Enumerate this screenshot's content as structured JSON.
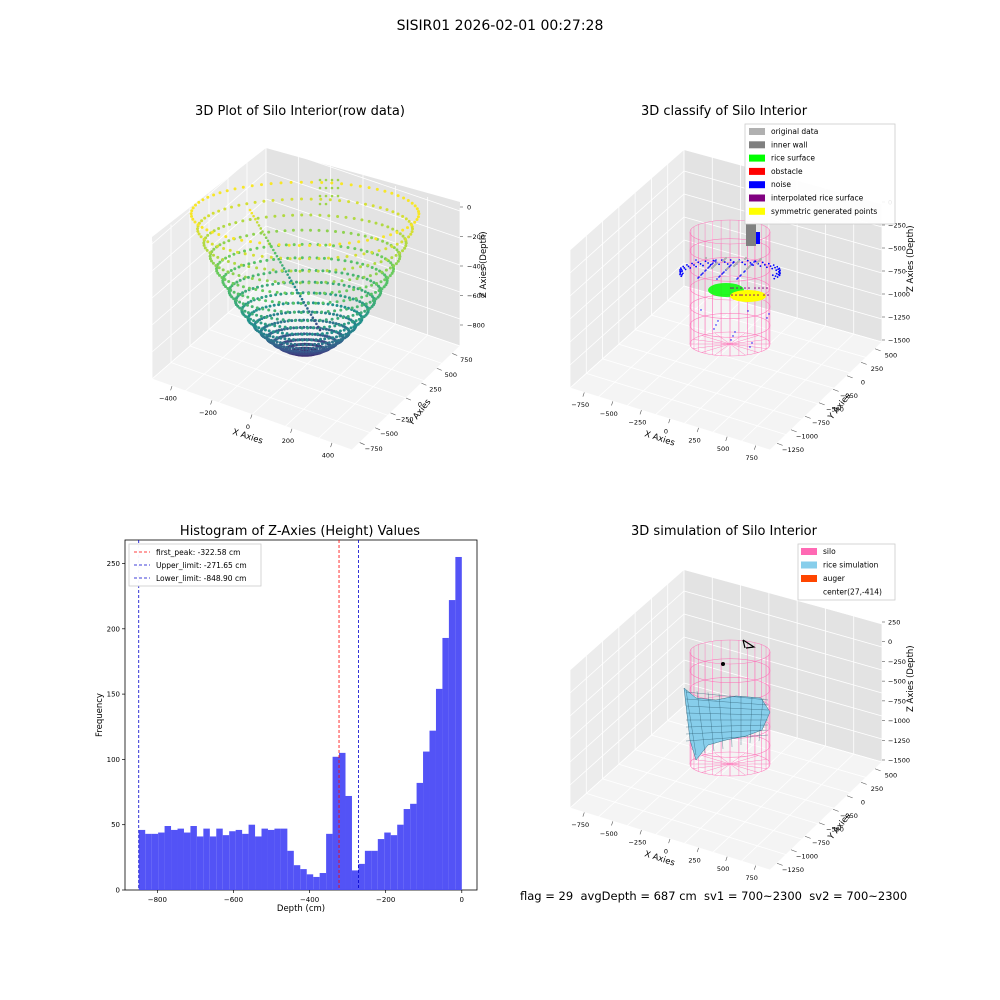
{
  "suptitle": "SISIR01 2026-02-01 00:27:28",
  "status_text": "flag = 29  avgDepth = 687 cm  sv1 = 700~2300  sv2 = 700~2300",
  "colors": {
    "hist_bar": "#4a4af5",
    "first_peak": "#ff0000",
    "limit": "#0000cc",
    "silo": "#ff69b4",
    "rice_simulation": "#87ceeb",
    "auger": "#ff4500",
    "original_data": "#b0b0b0",
    "inner_wall": "#808080",
    "rice_surface": "#00ff00",
    "obstacle": "#ff0000",
    "noise": "#0000ff",
    "interpolated_rice_surface": "#800080",
    "symmetric_generated_points": "#ffff00"
  },
  "chart_data": [
    {
      "type": "scatter",
      "subtype": "3d",
      "title": "3D Plot of Silo Interior(row data)",
      "xlabel": "X Axies",
      "ylabel": "Y Axies",
      "zlabel": "Z Axies (Depth)",
      "x_ticks": [
        "−400",
        "−200",
        "0",
        "200",
        "400"
      ],
      "y_ticks": [
        "−750",
        "−500",
        "−250",
        "0",
        "250",
        "500",
        "750"
      ],
      "z_ticks": [
        "0",
        "−200",
        "−400",
        "−600",
        "−800"
      ],
      "colormap": "viridis",
      "zlim": [
        -900,
        0
      ]
    },
    {
      "type": "scatter",
      "subtype": "3d",
      "title": "3D classify of Silo Interior",
      "xlabel": "X Axies",
      "ylabel": "Y Axies",
      "zlabel": "Z Axies (Depth)",
      "x_ticks": [
        "−750",
        "−500",
        "−250",
        "0",
        "250",
        "500",
        "750"
      ],
      "y_ticks": [
        "−1250",
        "−1000",
        "−750",
        "−500",
        "−250",
        "0",
        "250",
        "500"
      ],
      "z_ticks": [
        "0",
        "−250",
        "−500",
        "−750",
        "−1000",
        "−1250",
        "−1500"
      ],
      "legend": [
        "original data",
        "inner wall",
        "rice surface",
        "obstacle",
        "noise",
        "interpolated rice surface",
        "symmetric generated points"
      ],
      "legend_placement": "top-right"
    },
    {
      "type": "bar",
      "title": "Histogram of Z-Axies (Height) Values",
      "xlabel": "Depth (cm)",
      "ylabel": "Frequency",
      "x_ticks": [
        "−800",
        "−600",
        "−400",
        "−200",
        "0"
      ],
      "x_tick_values": [
        -800,
        -600,
        -400,
        -200,
        0
      ],
      "y_ticks": [
        0,
        50,
        100,
        150,
        200,
        250
      ],
      "xlim": [
        -885,
        40
      ],
      "ylim": [
        0,
        268
      ],
      "bin_start": -848.9,
      "bin_width": 16.98,
      "values": [
        46,
        43,
        43,
        44,
        49,
        46,
        47,
        44,
        49,
        41,
        47,
        41,
        47,
        42,
        45,
        46,
        43,
        50,
        41,
        47,
        46,
        47,
        47,
        30,
        19,
        16,
        12,
        10,
        13,
        43,
        102,
        105,
        72,
        15,
        20,
        30,
        30,
        39,
        44,
        42,
        50,
        62,
        66,
        82,
        106,
        122,
        154,
        193,
        222,
        255
      ],
      "lines": [
        {
          "name": "first_peak: -322.58 cm",
          "x": -322.58,
          "color": "#ff0000"
        },
        {
          "name": "Upper_limit: -271.65 cm",
          "x": -271.65,
          "color": "#0000cc"
        },
        {
          "name": "Lower_limit: -848.90 cm",
          "x": -848.9,
          "color": "#0000cc"
        }
      ],
      "legend_placement": "top-left"
    },
    {
      "type": "surface",
      "subtype": "3d",
      "title": "3D simulation of Silo Interior",
      "xlabel": "X Axies",
      "ylabel": "Y Axies",
      "zlabel": "Z Axies (Depth)",
      "x_ticks": [
        "−750",
        "−500",
        "−250",
        "0",
        "250",
        "500",
        "750"
      ],
      "y_ticks": [
        "−1250",
        "−1000",
        "−750",
        "−500",
        "−250",
        "0",
        "250",
        "500"
      ],
      "z_ticks": [
        "250",
        "0",
        "−250",
        "−500",
        "−750",
        "−1000",
        "−1250",
        "−1500"
      ],
      "legend": [
        "silo",
        "rice simulation",
        "auger",
        "center(27,-414)"
      ],
      "legend_placement": "top-right"
    }
  ]
}
